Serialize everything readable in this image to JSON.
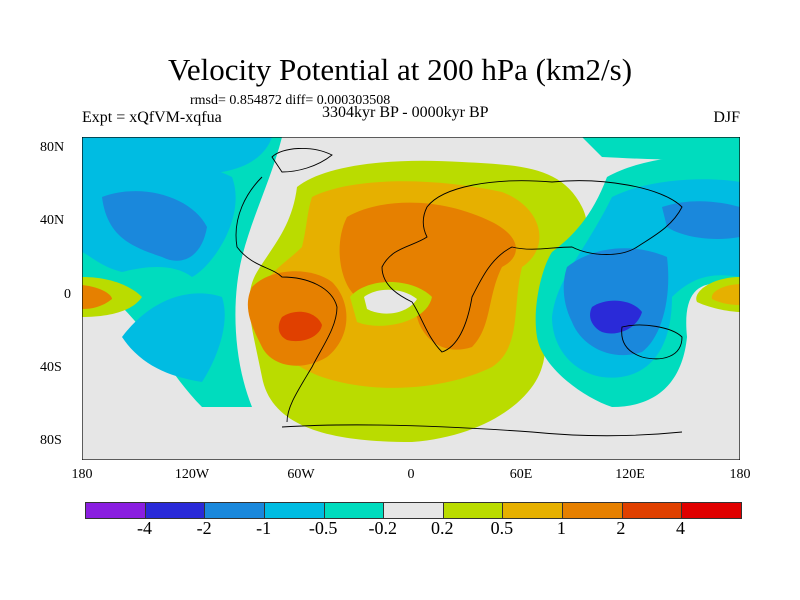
{
  "title": "Velocity Potential at 200 hPa (km2/s)",
  "stats": "rmsd= 0.854872 diff= 0.000303508",
  "left_label": "Expt = xQfVM-xqfua",
  "center_label": "3304kyr BP - 0000kyr BP",
  "right_label": "DJF",
  "y_ticks": [
    "80N",
    "40N",
    "0",
    "40S",
    "80S"
  ],
  "x_ticks": [
    "180",
    "120W",
    "60W",
    "0",
    "60E",
    "120E",
    "180"
  ],
  "colorbar": {
    "colors": [
      "#8a1ee0",
      "#2a2ad8",
      "#1a88dc",
      "#00bce2",
      "#00dcbe",
      "#e6e6e6",
      "#badc00",
      "#e6b000",
      "#e68000",
      "#e04000",
      "#e00000"
    ],
    "labels": [
      "-4",
      "-2",
      "-1",
      "-0.5",
      "-0.2",
      "0.2",
      "0.5",
      "1",
      "2",
      "4"
    ]
  }
}
